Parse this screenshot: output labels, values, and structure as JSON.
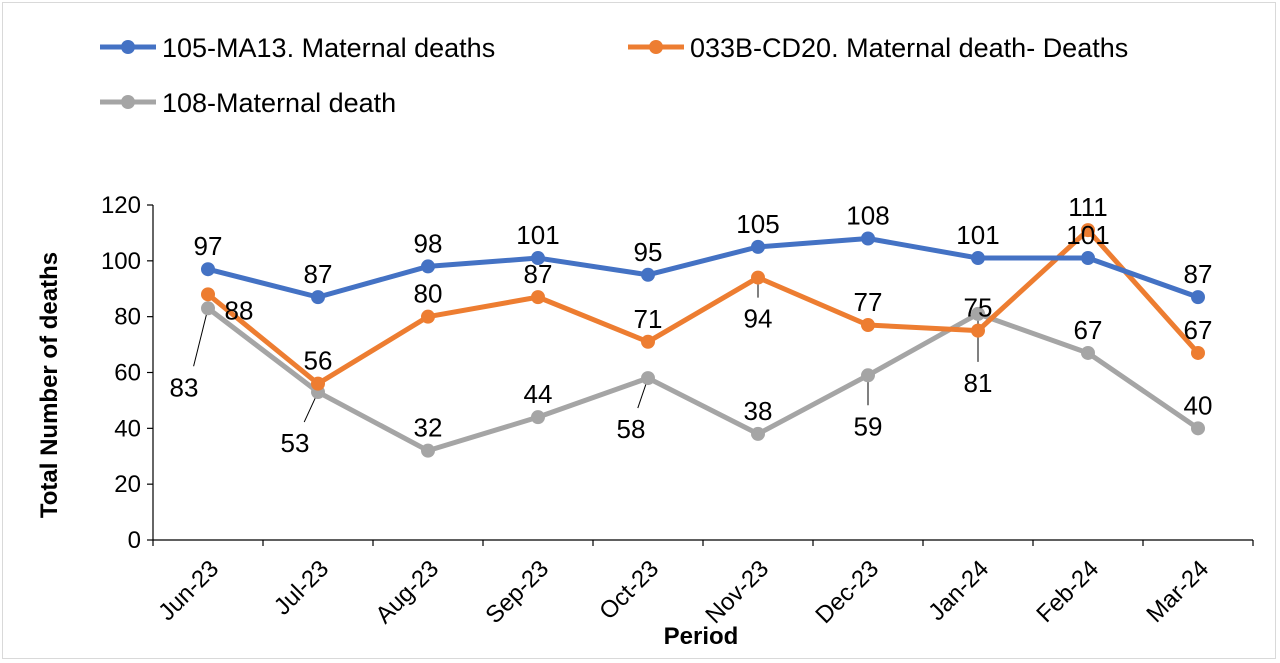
{
  "chart_data": {
    "type": "line",
    "title": "",
    "xlabel": "Period",
    "ylabel": "Total Number of deaths",
    "categories": [
      "Jun-23",
      "Jul-23",
      "Aug-23",
      "Sep-23",
      "Oct-23",
      "Nov-23",
      "Dec-23",
      "Jan-24",
      "Feb-24",
      "Mar-24"
    ],
    "ylim": [
      0,
      120
    ],
    "yticks": [
      "0",
      "20",
      "40",
      "60",
      "80",
      "100",
      "120"
    ],
    "grid": false,
    "legend_position": "top",
    "series": [
      {
        "name": "105-MA13. Maternal deaths",
        "color": "#4472C4",
        "values": [
          97,
          87,
          98,
          101,
          95,
          105,
          108,
          101,
          101,
          87
        ]
      },
      {
        "name": "033B-CD20. Maternal death- Deaths",
        "color": "#ED7D31",
        "values": [
          88,
          56,
          80,
          87,
          71,
          94,
          77,
          75,
          111,
          67
        ]
      },
      {
        "name": "108-Maternal death",
        "color": "#A5A5A5",
        "values": [
          83,
          53,
          32,
          44,
          58,
          38,
          59,
          81,
          67,
          40
        ]
      }
    ]
  }
}
